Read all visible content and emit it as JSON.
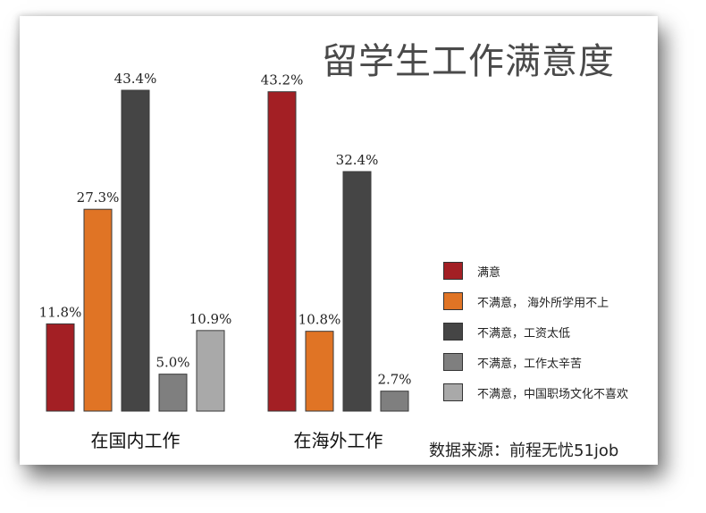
{
  "title": "留学生工作满意度",
  "source": "数据来源：前程无忧51job",
  "chart_data": {
    "type": "bar",
    "title": "留学生工作满意度",
    "categories": [
      "在国内工作",
      "在海外工作"
    ],
    "series": [
      {
        "name": "满意",
        "color": "#a31f24",
        "values": [
          11.8,
          43.2
        ]
      },
      {
        "name": "不满意， 海外所学用不上",
        "color": "#e07425",
        "values": [
          27.3,
          10.8
        ]
      },
      {
        "name": "不满意，工资太低",
        "color": "#454545",
        "values": [
          43.4,
          32.4
        ]
      },
      {
        "name": "不满意，工作太辛苦",
        "color": "#7f7f7f",
        "values": [
          5.0,
          2.7
        ]
      },
      {
        "name": "不满意，中国职场文化不喜欢",
        "color": "#a9a9a9",
        "values": [
          10.9,
          null
        ]
      }
    ],
    "value_labels": [
      [
        "11.8%",
        "43.2%"
      ],
      [
        "27.3%",
        "10.8%"
      ],
      [
        "43.4%",
        "32.4%"
      ],
      [
        "5.0%",
        "2.7%"
      ],
      [
        "10.9%",
        ""
      ]
    ],
    "ylim": [
      0,
      45
    ],
    "grid": false,
    "legend": "right"
  }
}
